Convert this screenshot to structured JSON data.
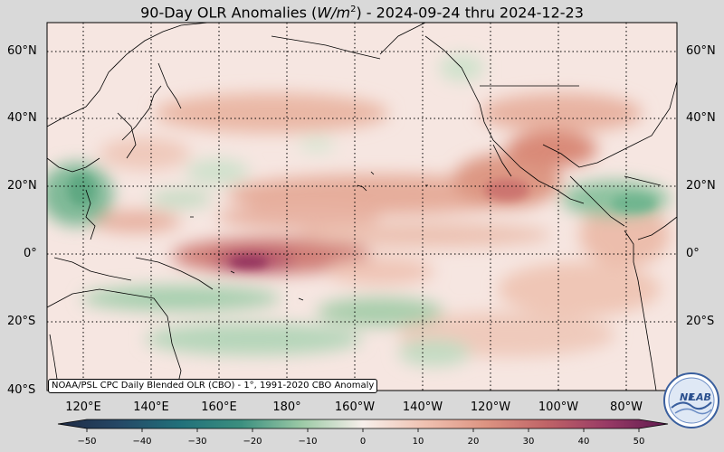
{
  "title": {
    "prefix": "90-Day OLR Anomalies (",
    "unit_base": "W/m",
    "unit_exp": "2",
    "suffix": ") - 2024-09-24 thru 2024-12-23"
  },
  "credit": "NOAA/PSL CPC Daily Blended OLR (CBO) - 1°, 1991-2020 CBO Anomaly",
  "lat_labels": [
    "60°N",
    "40°N",
    "20°N",
    "0°",
    "20°S",
    "40°S"
  ],
  "lon_labels": [
    "120°E",
    "140°E",
    "160°E",
    "180°",
    "160°W",
    "140°W",
    "120°W",
    "100°W",
    "80°W"
  ],
  "colorbar": {
    "ticks": [
      "−50",
      "−40",
      "−30",
      "−20",
      "−10",
      "0",
      "10",
      "20",
      "30",
      "40",
      "50"
    ],
    "colors": [
      "#1f2a44",
      "#254866",
      "#21707a",
      "#3b8f7f",
      "#7db88f",
      "#c5dfc6",
      "#f7efeb",
      "#f3c8b8",
      "#e29a88",
      "#c76a6a",
      "#9c3d66",
      "#6b1f55"
    ]
  },
  "logo": {
    "text_top": "NE",
    "text_bottom": "LAB",
    "icon": "noaa-physical-sciences-lab-logo"
  },
  "map": {
    "projection": "equirectangular",
    "extent": {
      "lon": [
        110,
        295
      ],
      "lat": [
        -40,
        68
      ]
    },
    "gridlines": "dotted",
    "field": "OLR anomaly"
  }
}
